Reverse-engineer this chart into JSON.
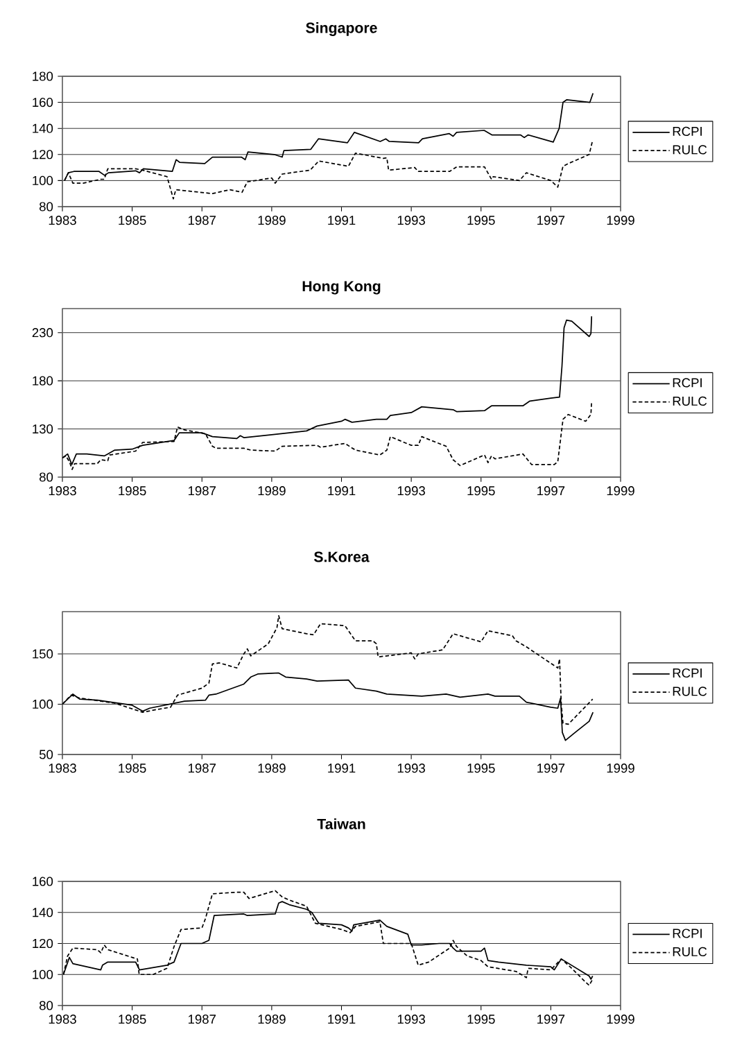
{
  "chart_data": [
    {
      "type": "line",
      "title": "Singapore",
      "xlim": [
        1983,
        1999
      ],
      "xticks": [
        1983,
        1985,
        1987,
        1989,
        1991,
        1993,
        1995,
        1997,
        1999
      ],
      "ylim": [
        80,
        180
      ],
      "yticks": [
        80,
        100,
        120,
        140,
        160,
        180
      ],
      "grid": "y",
      "legend": "right",
      "series": [
        {
          "name": "RCPI",
          "color": "#000000",
          "line_style": "solid",
          "x": [
            1983.06,
            1983.17,
            1983.33,
            1984.05,
            1984.21,
            1984.32,
            1985.1,
            1985.21,
            1985.32,
            1986.15,
            1986.26,
            1986.36,
            1987.08,
            1987.3,
            1988.13,
            1988.24,
            1988.32,
            1989.07,
            1989.3,
            1989.35,
            1990.12,
            1990.34,
            1991.17,
            1991.37,
            1992.11,
            1992.27,
            1992.37,
            1993.21,
            1993.32,
            1994.09,
            1994.2,
            1994.3,
            1995.09,
            1995.31,
            1996.13,
            1996.24,
            1996.35,
            1997.07,
            1997.24,
            1997.35,
            1997.46,
            1998.12,
            1998.21
          ],
          "values": [
            100,
            106,
            107,
            107,
            104,
            106,
            107.5,
            106,
            109,
            107,
            116,
            114,
            113,
            118,
            118,
            116,
            122,
            120,
            118,
            123,
            124,
            132,
            129,
            137,
            130,
            132,
            130,
            129,
            132,
            136,
            134,
            137,
            138.5,
            135,
            135,
            133,
            135,
            129.5,
            140,
            160,
            162,
            160,
            167
          ]
        },
        {
          "name": "RULC",
          "color": "#000000",
          "line_style": "dashed",
          "x": [
            1983.06,
            1983.17,
            1983.3,
            1983.6,
            1984.1,
            1984.2,
            1984.3,
            1985.1,
            1985.3,
            1986.0,
            1986.18,
            1986.25,
            1987.3,
            1987.8,
            1988.15,
            1988.3,
            1989.0,
            1989.1,
            1989.3,
            1990.1,
            1990.35,
            1991.2,
            1991.4,
            1992.2,
            1992.3,
            1992.35,
            1993.1,
            1993.2,
            1994.1,
            1994.3,
            1995.1,
            1995.3,
            1995.35,
            1996.1,
            1996.3,
            1997.0,
            1997.2,
            1997.35,
            1997.5,
            1998.1,
            1998.2
          ],
          "values": [
            100,
            106,
            98,
            98,
            101,
            101,
            109,
            109,
            108,
            103,
            86,
            93,
            90,
            93,
            91,
            99,
            102,
            98,
            105,
            108,
            115,
            111,
            121,
            117,
            117.5,
            108,
            110,
            107,
            107,
            110.5,
            110.5,
            101,
            103,
            100,
            106,
            100,
            95,
            111,
            113,
            120,
            131
          ]
        }
      ]
    },
    {
      "type": "line",
      "title": "Hong Kong",
      "xlim": [
        1983,
        1999
      ],
      "xticks": [
        1983,
        1985,
        1987,
        1989,
        1991,
        1993,
        1995,
        1997,
        1999
      ],
      "ylim": [
        80,
        255
      ],
      "yticks": [
        80,
        130,
        180,
        230
      ],
      "grid": "y",
      "legend": "right",
      "series": [
        {
          "name": "RCPI",
          "color": "#000000",
          "line_style": "solid",
          "x": [
            1983.0,
            1983.15,
            1983.27,
            1983.4,
            1983.7,
            1984.2,
            1984.3,
            1984.5,
            1985.0,
            1985.3,
            1986.2,
            1986.35,
            1987.0,
            1987.3,
            1988.0,
            1988.1,
            1988.2,
            1989.0,
            1990.0,
            1990.3,
            1991.0,
            1991.1,
            1991.3,
            1992.0,
            1992.3,
            1992.4,
            1993.0,
            1993.3,
            1994.2,
            1994.3,
            1995.1,
            1995.3,
            1996.2,
            1996.4,
            1997.0,
            1997.25,
            1997.32,
            1997.38,
            1997.45,
            1997.6,
            1998.1,
            1998.15,
            1998.17
          ],
          "values": [
            100,
            104,
            93,
            104,
            104,
            102,
            104,
            108,
            109,
            113,
            118,
            126,
            126,
            122,
            120,
            123,
            121,
            124,
            128,
            133,
            138,
            140,
            137,
            140,
            140,
            144,
            147,
            153,
            150,
            148,
            149,
            154,
            154,
            159,
            162,
            163,
            195,
            235,
            243,
            242,
            226,
            229,
            247
          ]
        },
        {
          "name": "RULC",
          "color": "#000000",
          "line_style": "dashed",
          "x": [
            1983.0,
            1983.1,
            1983.2,
            1983.28,
            1983.35,
            1984.0,
            1984.1,
            1984.3,
            1984.35,
            1985.1,
            1985.3,
            1986.2,
            1986.3,
            1986.5,
            1987.1,
            1987.3,
            1987.4,
            1988.2,
            1988.4,
            1989.1,
            1989.3,
            1990.3,
            1990.4,
            1991.1,
            1991.4,
            1992.1,
            1992.3,
            1992.4,
            1993.0,
            1993.2,
            1993.3,
            1994.0,
            1994.2,
            1994.4,
            1995.1,
            1995.2,
            1995.3,
            1995.4,
            1996.2,
            1996.45,
            1997.1,
            1997.2,
            1997.35,
            1997.5,
            1998.0,
            1998.15,
            1998.17
          ],
          "values": [
            100,
            102,
            96,
            88,
            94,
            94,
            98,
            97,
            103,
            107,
            116,
            117,
            132,
            129,
            125,
            112,
            110,
            110,
            108,
            107,
            112,
            113,
            111,
            115,
            108,
            103,
            108,
            122,
            113,
            113,
            122,
            112,
            98,
            92,
            103,
            95,
            102,
            99,
            104,
            93,
            93,
            96,
            140,
            145,
            138,
            145,
            159
          ]
        }
      ]
    },
    {
      "type": "line",
      "title": "S.Korea",
      "xlim": [
        1983,
        1999
      ],
      "xticks": [
        1983,
        1985,
        1987,
        1989,
        1991,
        1993,
        1995,
        1997,
        1999
      ],
      "ylim": [
        50,
        192
      ],
      "yticks": [
        50,
        100,
        150
      ],
      "grid": "y",
      "legend": "right",
      "series": [
        {
          "name": "RCPI",
          "color": "#000000",
          "line_style": "solid",
          "x": [
            1983.0,
            1983.3,
            1983.5,
            1984.0,
            1985.0,
            1985.3,
            1985.5,
            1986.5,
            1987.1,
            1987.2,
            1987.4,
            1988.2,
            1988.4,
            1988.6,
            1989.2,
            1989.4,
            1990.0,
            1990.3,
            1991.2,
            1991.4,
            1992.0,
            1992.3,
            1993.3,
            1994.0,
            1994.4,
            1995.2,
            1995.4,
            1996.1,
            1996.3,
            1997.0,
            1997.2,
            1997.28,
            1997.33,
            1997.42,
            1997.7,
            1998.1,
            1998.21
          ],
          "values": [
            100,
            110,
            105,
            104,
            99,
            93,
            96,
            103,
            104,
            109,
            110,
            120,
            127,
            130,
            131,
            127,
            125,
            123,
            124,
            116,
            113,
            110,
            108,
            110,
            107,
            110,
            108,
            108,
            102,
            97,
            96,
            106,
            72,
            64,
            72,
            83,
            92
          ]
        },
        {
          "name": "RULC",
          "color": "#000000",
          "line_style": "dashed",
          "x": [
            1983.0,
            1983.25,
            1983.5,
            1984.5,
            1985.3,
            1985.6,
            1986.1,
            1986.3,
            1987.0,
            1987.2,
            1987.3,
            1987.5,
            1988.0,
            1988.2,
            1988.3,
            1988.4,
            1988.9,
            1989.15,
            1989.2,
            1989.3,
            1990.0,
            1990.2,
            1990.4,
            1991.1,
            1991.4,
            1991.9,
            1992.0,
            1992.05,
            1992.3,
            1993.0,
            1993.1,
            1993.2,
            1993.9,
            1994.2,
            1995.0,
            1995.2,
            1995.9,
            1996.0,
            1996.3,
            1996.6,
            1997.2,
            1997.25,
            1997.3,
            1997.35,
            1997.5,
            1998.2
          ],
          "values": [
            100,
            109,
            106,
            101,
            92,
            94,
            97,
            109,
            116,
            121,
            140,
            141,
            136,
            150,
            155,
            148,
            160,
            176,
            188,
            175,
            170,
            169,
            180,
            178,
            163,
            163,
            160,
            147,
            148,
            151,
            145,
            150,
            154,
            170,
            162,
            173,
            168,
            163,
            157,
            150,
            136,
            145,
            100,
            81,
            80,
            105
          ]
        }
      ]
    },
    {
      "type": "line",
      "title": "Taiwan",
      "xlim": [
        1983,
        1999
      ],
      "xticks": [
        1983,
        1985,
        1987,
        1989,
        1991,
        1993,
        1995,
        1997,
        1999
      ],
      "ylim": [
        80,
        160
      ],
      "yticks": [
        80,
        100,
        120,
        140,
        160
      ],
      "grid": "y",
      "legend": "right",
      "series": [
        {
          "name": "RCPI",
          "color": "#000000",
          "line_style": "solid",
          "x": [
            1983.03,
            1983.2,
            1983.3,
            1984.1,
            1984.15,
            1984.3,
            1985.1,
            1985.21,
            1986.0,
            1986.2,
            1986.4,
            1987.0,
            1987.2,
            1987.35,
            1988.2,
            1988.3,
            1989.1,
            1989.2,
            1989.3,
            1989.5,
            1990.0,
            1990.15,
            1990.35,
            1991.0,
            1991.2,
            1991.3,
            1991.35,
            1992.1,
            1992.3,
            1992.9,
            1993.0,
            1993.3,
            1993.8,
            1994.1,
            1994.2,
            1994.3,
            1995.0,
            1995.1,
            1995.2,
            1995.5,
            1996.3,
            1997.0,
            1997.1,
            1997.3,
            1998.1,
            1998.15,
            1998.2
          ],
          "values": [
            100,
            111,
            107,
            103,
            106,
            108,
            108,
            103,
            106,
            108,
            120,
            120,
            122,
            138,
            139,
            138,
            139,
            146,
            147,
            145,
            142,
            140,
            133,
            132,
            130,
            128,
            132,
            135,
            131,
            126,
            119,
            119,
            120,
            120,
            117,
            115,
            115,
            117,
            109,
            108,
            106,
            105,
            103,
            110,
            99,
            97,
            99
          ]
        },
        {
          "name": "RULC",
          "color": "#000000",
          "line_style": "dashed",
          "x": [
            1983.03,
            1983.15,
            1983.3,
            1984.0,
            1984.1,
            1984.2,
            1984.3,
            1985.0,
            1985.15,
            1985.2,
            1985.6,
            1986.0,
            1986.2,
            1986.4,
            1987.0,
            1987.1,
            1987.3,
            1988.0,
            1988.2,
            1988.35,
            1989.1,
            1989.3,
            1989.5,
            1990.0,
            1990.25,
            1991.0,
            1991.25,
            1991.4,
            1992.1,
            1992.2,
            1993.0,
            1993.2,
            1993.5,
            1994.1,
            1994.2,
            1994.3,
            1994.6,
            1995.0,
            1995.1,
            1995.2,
            1996.0,
            1996.3,
            1996.35,
            1997.0,
            1997.3,
            1997.6,
            1998.0,
            1998.1,
            1998.2
          ],
          "values": [
            100,
            112,
            117,
            116,
            114,
            119,
            116,
            111,
            110,
            100,
            100,
            104,
            118,
            129,
            130,
            136,
            152,
            153,
            153,
            149,
            154,
            150,
            148,
            144,
            133,
            129,
            127,
            131,
            134,
            120,
            120,
            106,
            108,
            117,
            122,
            118,
            112,
            109,
            107,
            105,
            102,
            98,
            104,
            103,
            110,
            104,
            95,
            93,
            97
          ]
        }
      ]
    }
  ]
}
